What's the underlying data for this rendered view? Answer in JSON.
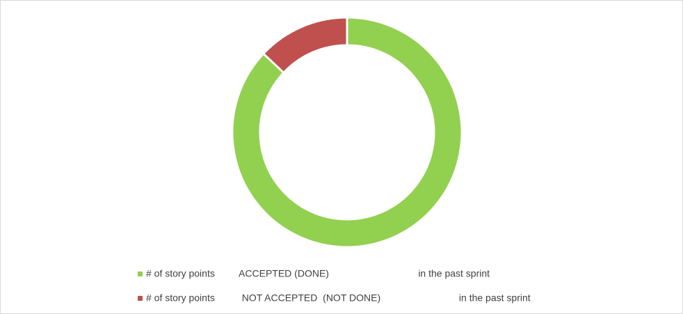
{
  "chart_data": {
    "type": "donut",
    "categories": [
      "# of story points         ACCEPTED (DONE)                                 in the past sprint",
      "# of story points          NOT ACCEPTED  (NOT DONE)                             in the past sprint"
    ],
    "values": [
      87,
      13
    ],
    "colors": [
      "#92d050",
      "#c0504d"
    ],
    "legend": "bottom"
  }
}
